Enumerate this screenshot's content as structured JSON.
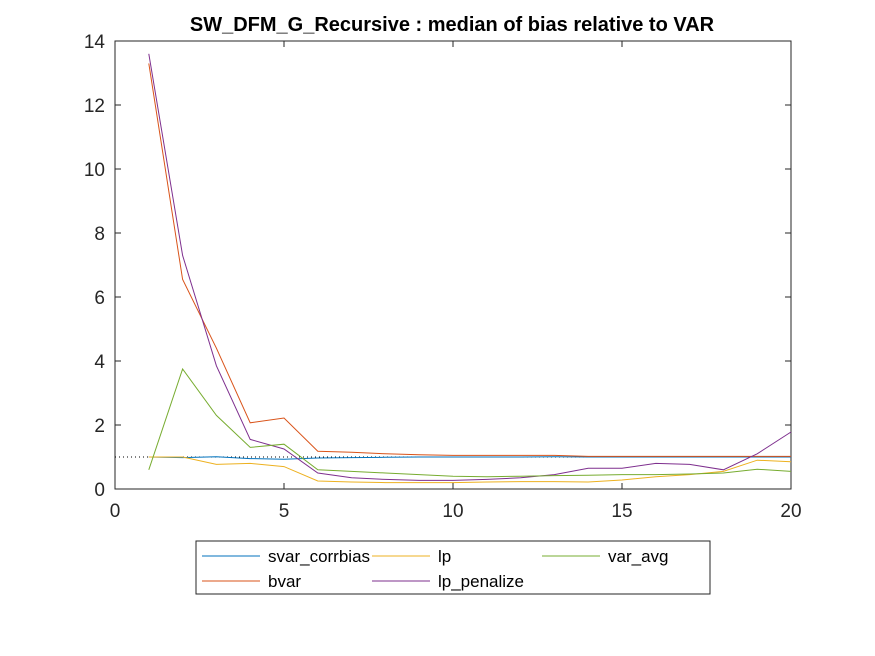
{
  "chart_data": {
    "type": "line",
    "title": "SW_DFM_G_Recursive : median of bias relative to VAR",
    "xlabel": "",
    "ylabel": "",
    "xlim": [
      0,
      20
    ],
    "ylim": [
      0,
      14
    ],
    "xticks": [
      0,
      5,
      10,
      15,
      20
    ],
    "yticks": [
      0,
      2,
      4,
      6,
      8,
      10,
      12,
      14
    ],
    "grid": false,
    "legend_position": "below-outside",
    "reference_line": {
      "y": 1,
      "style": "dotted",
      "color": "#000000"
    },
    "x": [
      1,
      2,
      3,
      4,
      5,
      6,
      7,
      8,
      9,
      10,
      11,
      12,
      13,
      14,
      15,
      16,
      17,
      18,
      19,
      20
    ],
    "series": [
      {
        "name": "svar_corrbias",
        "color": "#0072BD",
        "values": [
          1.0,
          0.98,
          1.01,
          0.95,
          0.93,
          0.97,
          0.98,
          0.99,
          1.0,
          1.0,
          1.0,
          1.0,
          1.01,
          1.0,
          1.0,
          1.0,
          1.0,
          1.0,
          1.0,
          1.0
        ]
      },
      {
        "name": "bvar",
        "color": "#D95319",
        "values": [
          13.3,
          6.55,
          4.4,
          2.07,
          2.22,
          1.18,
          1.15,
          1.1,
          1.07,
          1.05,
          1.05,
          1.05,
          1.05,
          1.02,
          1.02,
          1.02,
          1.02,
          1.02,
          1.02,
          1.02
        ]
      },
      {
        "name": "lp",
        "color": "#EDB120",
        "values": [
          1.0,
          1.0,
          0.77,
          0.8,
          0.7,
          0.25,
          0.22,
          0.2,
          0.2,
          0.2,
          0.22,
          0.23,
          0.23,
          0.22,
          0.28,
          0.38,
          0.45,
          0.55,
          0.9,
          0.85
        ]
      },
      {
        "name": "lp_penalize",
        "color": "#7E2F8E",
        "values": [
          13.6,
          7.3,
          3.85,
          1.55,
          1.25,
          0.5,
          0.35,
          0.3,
          0.27,
          0.27,
          0.3,
          0.35,
          0.45,
          0.65,
          0.65,
          0.8,
          0.77,
          0.6,
          1.1,
          1.78
        ]
      },
      {
        "name": "var_avg",
        "color": "#77AC30",
        "values": [
          0.6,
          3.75,
          2.3,
          1.3,
          1.4,
          0.6,
          0.55,
          0.5,
          0.45,
          0.4,
          0.38,
          0.4,
          0.42,
          0.43,
          0.45,
          0.45,
          0.47,
          0.5,
          0.62,
          0.55
        ]
      }
    ]
  }
}
